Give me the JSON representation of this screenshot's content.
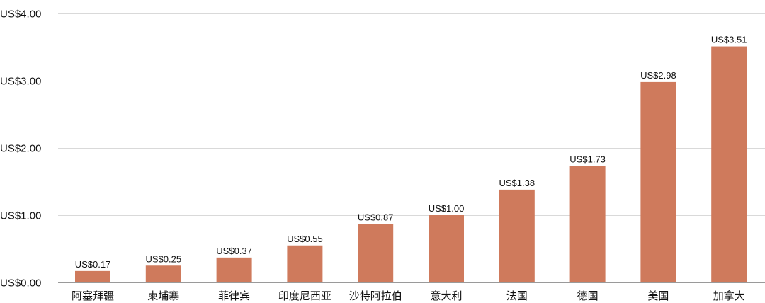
{
  "chart_data": {
    "type": "bar",
    "categories": [
      "阿塞拜疆",
      "柬埔寨",
      "菲律宾",
      "印度尼西亚",
      "沙特阿拉伯",
      "意大利",
      "法国",
      "德国",
      "美国",
      "加拿大"
    ],
    "values": [
      0.17,
      0.25,
      0.37,
      0.55,
      0.87,
      1.0,
      1.38,
      1.73,
      2.98,
      3.51
    ],
    "value_labels": [
      "US$0.17",
      "US$0.25",
      "US$0.37",
      "US$0.55",
      "US$0.87",
      "US$1.00",
      "US$1.38",
      "US$1.73",
      "US$2.98",
      "US$3.51"
    ],
    "y_ticks": [
      0,
      1,
      2,
      3,
      4
    ],
    "y_tick_labels": [
      "US$0.00",
      "US$1.00",
      "US$2.00",
      "US$3.00",
      "US$4.00"
    ],
    "ylim": [
      0,
      4
    ],
    "grid": true,
    "bar_color": "#cf7a5c",
    "title": "",
    "xlabel": "",
    "ylabel": ""
  }
}
